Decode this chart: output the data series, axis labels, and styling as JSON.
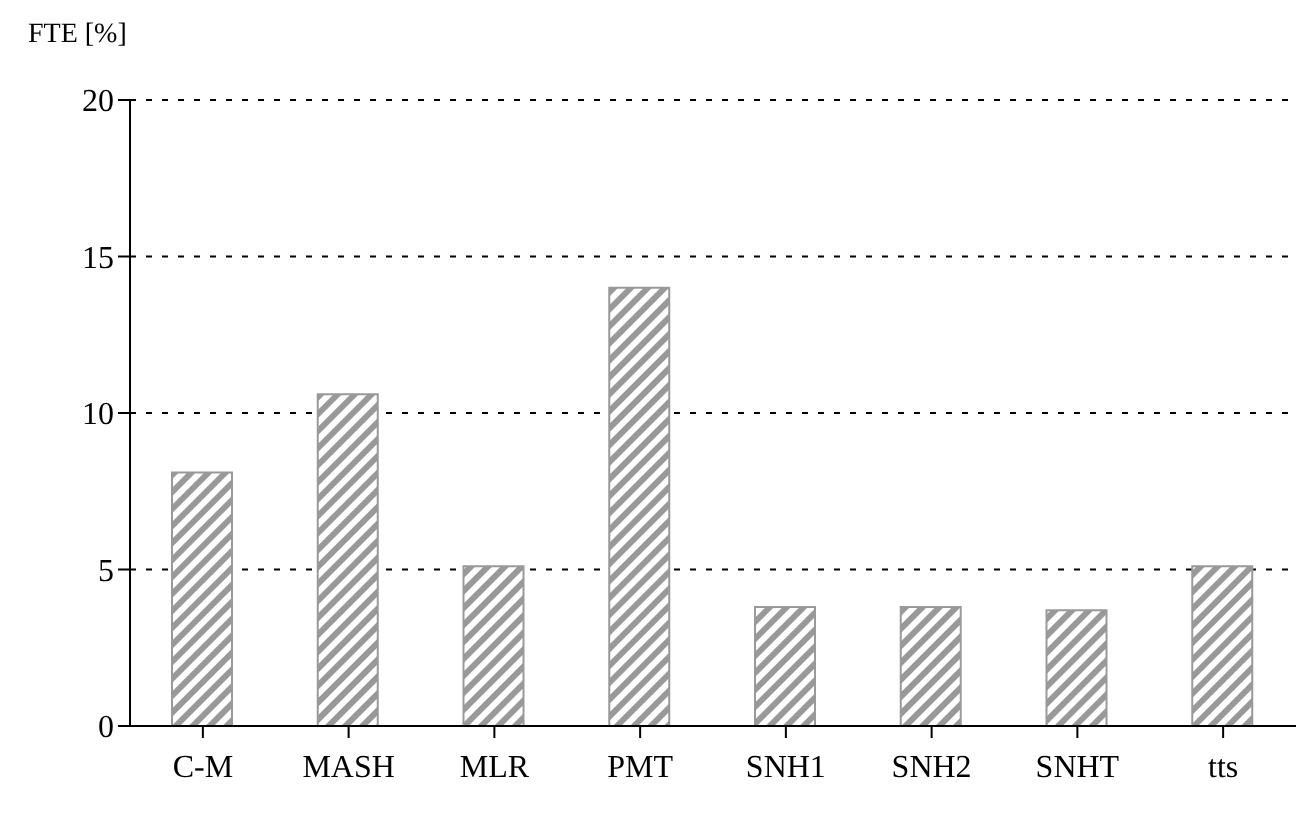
{
  "chart_data": {
    "type": "bar",
    "ylabel": "FTE [%]",
    "categories": [
      "C-M",
      "MASH",
      "MLR",
      "PMT",
      "SNH1",
      "SNH2",
      "SNHT",
      "tts"
    ],
    "values": [
      8.1,
      10.6,
      5.1,
      14.0,
      3.8,
      3.8,
      3.7,
      5.1
    ],
    "color": "#999999",
    "ylim": [
      0,
      20
    ],
    "yticks": [
      0,
      5,
      10,
      15,
      20
    ],
    "grid": "y"
  }
}
